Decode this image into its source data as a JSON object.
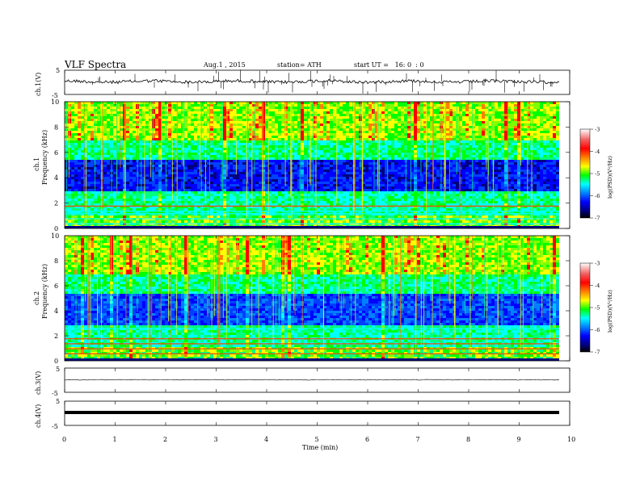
{
  "header": {
    "title": "VLF Spectra",
    "date": "Aug.1 , 2015",
    "station": "station= ATH",
    "start_ut": "start UT =   16: 0  : 0"
  },
  "colorbar": {
    "label": "log(PSD)(V²/Hz)",
    "ticks": [
      "-3",
      "-4",
      "-5",
      "-6",
      "-7"
    ],
    "colors": [
      "#ffffff",
      "#f06060",
      "#ff0000",
      "#ff8000",
      "#ffff00",
      "#00ff00",
      "#00ffff",
      "#0080ff",
      "#0000ff",
      "#000080",
      "#000000"
    ]
  },
  "panels": {
    "ch1": {
      "ylabel": "ch.1(V)",
      "ticks": [
        "5",
        "-5"
      ]
    },
    "ch3": {
      "ylabel": "ch.3(V)",
      "ticks": [
        "5",
        "-5"
      ]
    },
    "ch4": {
      "ylabel": "ch.4(V)",
      "ticks": [
        "5",
        "-5"
      ]
    },
    "spec1": {
      "ylabel_ch": "ch.1",
      "ylabel": "Frequency  (kHz)",
      "ticks": [
        "10",
        "8",
        "6",
        "4",
        "2",
        "0"
      ]
    },
    "spec2": {
      "ylabel_ch": "ch.2",
      "ylabel": "Frequency  (kHz)",
      "ticks": [
        "10",
        "8",
        "6",
        "4",
        "2",
        "0"
      ]
    }
  },
  "xaxis": {
    "label": "Time  (min)",
    "ticks": [
      "0",
      "1",
      "2",
      "3",
      "4",
      "5",
      "6",
      "7",
      "8",
      "9",
      "10"
    ]
  },
  "chart_data": [
    {
      "type": "line",
      "title": "VLF Spectra",
      "ylabel": "ch.1(V)",
      "xlabel": "Time  (min)",
      "xlim": [
        0,
        10
      ],
      "ylim": [
        -5,
        5
      ],
      "series": [
        {
          "values_note_x": [
            0,
            9.8
          ],
          "mean": 0.3
        }
      ]
    },
    {
      "type": "heatmap",
      "ylabel": "ch.1 Frequency  (kHz)",
      "xlim": [
        0,
        10
      ],
      "ylim": [
        0,
        10
      ],
      "data_extent_x": [
        0,
        9.8
      ],
      "colorbar_range": [
        -7,
        -3
      ],
      "colorbar_label": "log(PSD)(V²/Hz)"
    },
    {
      "type": "heatmap",
      "ylabel": "ch.2 Frequency  (kHz)",
      "xlim": [
        0,
        10
      ],
      "ylim": [
        0,
        10
      ],
      "data_extent_x": [
        0,
        9.8
      ],
      "colorbar_range": [
        -7,
        -3
      ],
      "colorbar_label": "log(PSD)(V²/Hz)"
    },
    {
      "type": "line",
      "ylabel": "ch.3(V)",
      "xlim": [
        0,
        10
      ],
      "ylim": [
        -5,
        5
      ],
      "series": [
        {
          "values_note_x": [
            0,
            9.8
          ],
          "mean": -1.3
        }
      ]
    },
    {
      "type": "line",
      "ylabel": "ch.4(V)",
      "xlim": [
        0,
        10
      ],
      "ylim": [
        -5,
        5
      ],
      "series": [
        {
          "values_note_x": [
            0,
            9.8
          ],
          "mean": -1.3
        }
      ]
    }
  ]
}
